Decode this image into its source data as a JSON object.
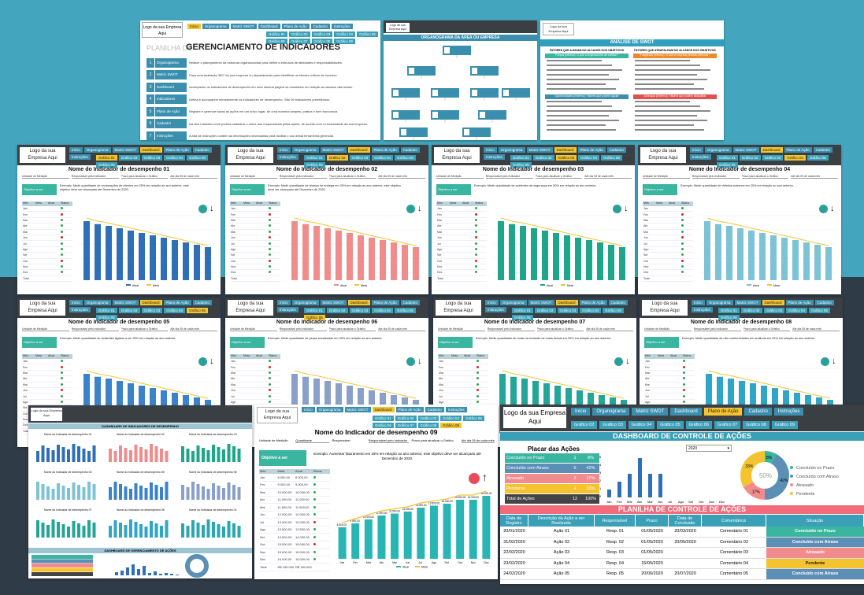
{
  "logo_text": "Logo da sua Empresa Aqui",
  "nav_main": [
    "Início",
    "Organograma",
    "Matriz SWOT",
    "Dashboard",
    "Plano de Ação",
    "Cadastro",
    "Instruções"
  ],
  "nav_graficos": [
    "Gráfico 01",
    "Gráfico 02",
    "Gráfico 03",
    "Gráfico 04",
    "Gráfico 05",
    "Gráfico 06",
    "Gráfico 07",
    "Gráfico 08",
    "Gráfico 09"
  ],
  "home": {
    "planilha": "PLANILHA DE",
    "title": "GERENCIAMENTO DE INDICADORES",
    "items": [
      {
        "n": "1",
        "label": "Organograma",
        "text": "Realize o planejamento da estrutura organizacional para definir a estrutura de atividades e responsabilidades."
      },
      {
        "n": "2",
        "label": "Matriz SWOT",
        "text": "Faça uma avaliação 360° da sua empresa ou departamento para identificar os fatores críticos de sucesso."
      },
      {
        "n": "3",
        "label": "Dashboard",
        "text": "Acompanhe os indicadores de desempenho em uma mesma página os resultados em relação ao alcance das metas."
      },
      {
        "n": "4",
        "label": "Indicadores",
        "text": "Defina e acompanhe mensalmente os indicadores de desempenho. São 09 indicadores predefinidos."
      },
      {
        "n": "5",
        "label": "Plano de Ação",
        "text": "Registre e gerencie todas as ações em um único lugar, de uma maneira simples, prática e sem burocracia."
      },
      {
        "n": "6",
        "label": "Cadastro",
        "text": "Na aba Cadastro você poderá cadastrar o nome dos responsáveis pelas ações, de acordo com a necessidade da sua empresa."
      },
      {
        "n": "7",
        "label": "Instruções",
        "text": "A aba de Instruções contém as informações necessárias para facilitar o uso desta ferramenta gerencial."
      }
    ]
  },
  "org": {
    "title": "ORGANOGRAMA DA ÁREA OU EMPRESA"
  },
  "swot": {
    "title": "ANÁLISE DE SWOT",
    "col1": "FATORES QUE AJUDAM NO ALCANCE DOS OBJETIVOS",
    "col2": "FATORES QUE ATRAPALHAM NO ALCANCE DOS OBJETIVOS",
    "forcas": "Forças (Interno): O que a empresa tem de melhor?",
    "fraquezas": "Fraquezas (Interno): O que a empresa precisa melhorar?",
    "oport": "Oportunidades (Externo): Fatores que podem ajudar",
    "ameacas": "Ameaças (Externo): Fatores que podem atrapalhar"
  },
  "indicator_common": {
    "unidade": "Unidade de Medição",
    "resp": "Responsável pelo Indicador",
    "prazo": "Prazo para atualizar o Gráfico",
    "ate": "Até dia 05 de cada mês",
    "obj": "Objetivo a ser Alcançado:",
    "cols": [
      "Mês",
      "Meta",
      "Atual",
      "Status"
    ],
    "meses": [
      "Jan",
      "Fev",
      "Mar",
      "Abr",
      "Mai",
      "Jun",
      "Jul",
      "Ago",
      "Set",
      "Out",
      "Nov",
      "Dez",
      "Total"
    ],
    "legend_atual": "Atual",
    "legend_meta": "Meta"
  },
  "indicators": [
    {
      "title": "Nome do Indicador de desempenho 01",
      "color": "#2f6fb8",
      "text": "Exemplo: Medir quantidade de reclamações de clientes em 25% em relação ao ano anterior, este objetivo deve ser alcançado até Dezembro de 2020."
    },
    {
      "title": "Nome do Indicador de desempenho 02",
      "color": "#f08c8c",
      "text": "Exemplo: Medir quantidade de atrasos de entrega em 30% em relação ao ano anterior, este objetivo deve ser alcançado até Dezembro de 2020."
    },
    {
      "title": "Nome do Indicador de desempenho 03",
      "color": "#1fa58a",
      "text": "Exemplo: Medir quantidade de acidentes de segurança em 50% em relação ao ano anterior."
    },
    {
      "title": "Nome do Indicador de desempenho 04",
      "color": "#7cc3d6",
      "text": "Exemplo: Medir quantidade de defeitos externos em 25% em relação ao ano anterior."
    },
    {
      "title": "Nome do Indicador de desempenho 05",
      "color": "#3a82c9",
      "text": "Exemplo: Medir quantidade de acidentes ligados a em 25% em relação ao ano anterior."
    },
    {
      "title": "Nome do Indicador de desempenho 06",
      "color": "#8aa0c8",
      "text": "Exemplo: Medir quantidade de peças sucateadas em 25% em relação ao ano anterior."
    },
    {
      "title": "Nome do Indicador de desempenho 07",
      "color": "#23a597",
      "text": "Exemplo: Medir quantidade de notas na emissão de notas fiscais em 25% em relação ao ano anterior."
    },
    {
      "title": "Nome do Indicador de desempenho 08",
      "color": "#2fa6c6",
      "text": "Exemplo: Medir quantidade de não conformidades em auditoria em 25% em relação ao ano anterior."
    }
  ],
  "ind9": {
    "title": "Nome do Indicador de desempenho 09",
    "unidade": "Unidade de Medição",
    "unidade_val": "Quantidade",
    "resp": "Responsável",
    "resp_val": "Responsável pelo Indicador",
    "prazo": "Prazo para atualizar o Gráfico",
    "prazo_val": "Até dia 05 de cada mês",
    "obj": "Objetivo a ser Alcançado:",
    "text": "Exemplo: Aumentar faturamento em 25% em relação ao ano anterior, este objetivo deve ser alcançado até Dezembro de 2020.",
    "total_meta": "R$ 150.000",
    "total_atual": "R$ 150.000"
  },
  "dash_ind": {
    "title": "DASHBOARD DE INDICADORES DE DESEMPENHO",
    "acoes": "DASHBOARD DE GERENCIAMENTO DE AÇÕES"
  },
  "ctrl": {
    "title": "DASHBOARD DE CONTROLE DE AÇÕES",
    "placar": "Placar das Ações",
    "year": "2020",
    "placar_rows": [
      {
        "label": "Concluído no Prazo",
        "n": "1",
        "p": "8%",
        "c": "#3ab5a0"
      },
      {
        "label": "Concluído com Atraso",
        "n": "5",
        "p": "42%",
        "c": "#5c8fb5"
      },
      {
        "label": "Atrasado",
        "n": "2",
        "p": "17%",
        "c": "#f28c8c"
      },
      {
        "label": "Pendente",
        "n": "4",
        "p": "33%",
        "c": "#f4c430"
      },
      {
        "label": "Total de Ações",
        "n": "12",
        "p": "100%",
        "c": "#444"
      }
    ],
    "donut_center": "50%",
    "legend": [
      "Concluído no Prazo",
      "Concluído com Atraso",
      "Atrasado",
      "Pendente"
    ],
    "months": [
      "Jan",
      "Fev",
      "Mar",
      "Abr",
      "Mai",
      "Jun",
      "Jul",
      "Ago",
      "Set",
      "Out",
      "Nov",
      "Dez"
    ],
    "y_ticks": [
      "5",
      "4",
      "3",
      "2",
      "1",
      "0"
    ],
    "plan_title": "PLANILHA DE CONTROLE DE AÇÕES",
    "headers": [
      "Data de Registro",
      "Descrição da Ação a ser Realizada",
      "Responsável",
      "Prazo",
      "Data de Conclusão",
      "Comentários",
      "Situação"
    ],
    "rows": [
      [
        "20/01/2020",
        "Ação 01",
        "Resp. 01",
        "01/05/2020",
        "20/03/2020",
        "Comentário 01",
        "Concluído no Prazo"
      ],
      [
        "31/02/2020",
        "Ação 02",
        "Resp. 02",
        "01/05/2020",
        "20/05/2020",
        "Comentário 02",
        "Concluído com Atraso"
      ],
      [
        "22/02/2020",
        "Ação 03",
        "Resp. 03",
        "01/05/2020",
        "",
        "Comentário 03",
        "Atrasado"
      ],
      [
        "23/02/2020",
        "Ação 04",
        "Resp. 04",
        "15/05/2020",
        "",
        "Comentário 04",
        "Pendente"
      ],
      [
        "24/02/2020",
        "Ação 05",
        "Resp. 05",
        "20/06/2020",
        "20/07/2020",
        "Comentário 05",
        "Concluído com Atraso"
      ]
    ]
  }
}
